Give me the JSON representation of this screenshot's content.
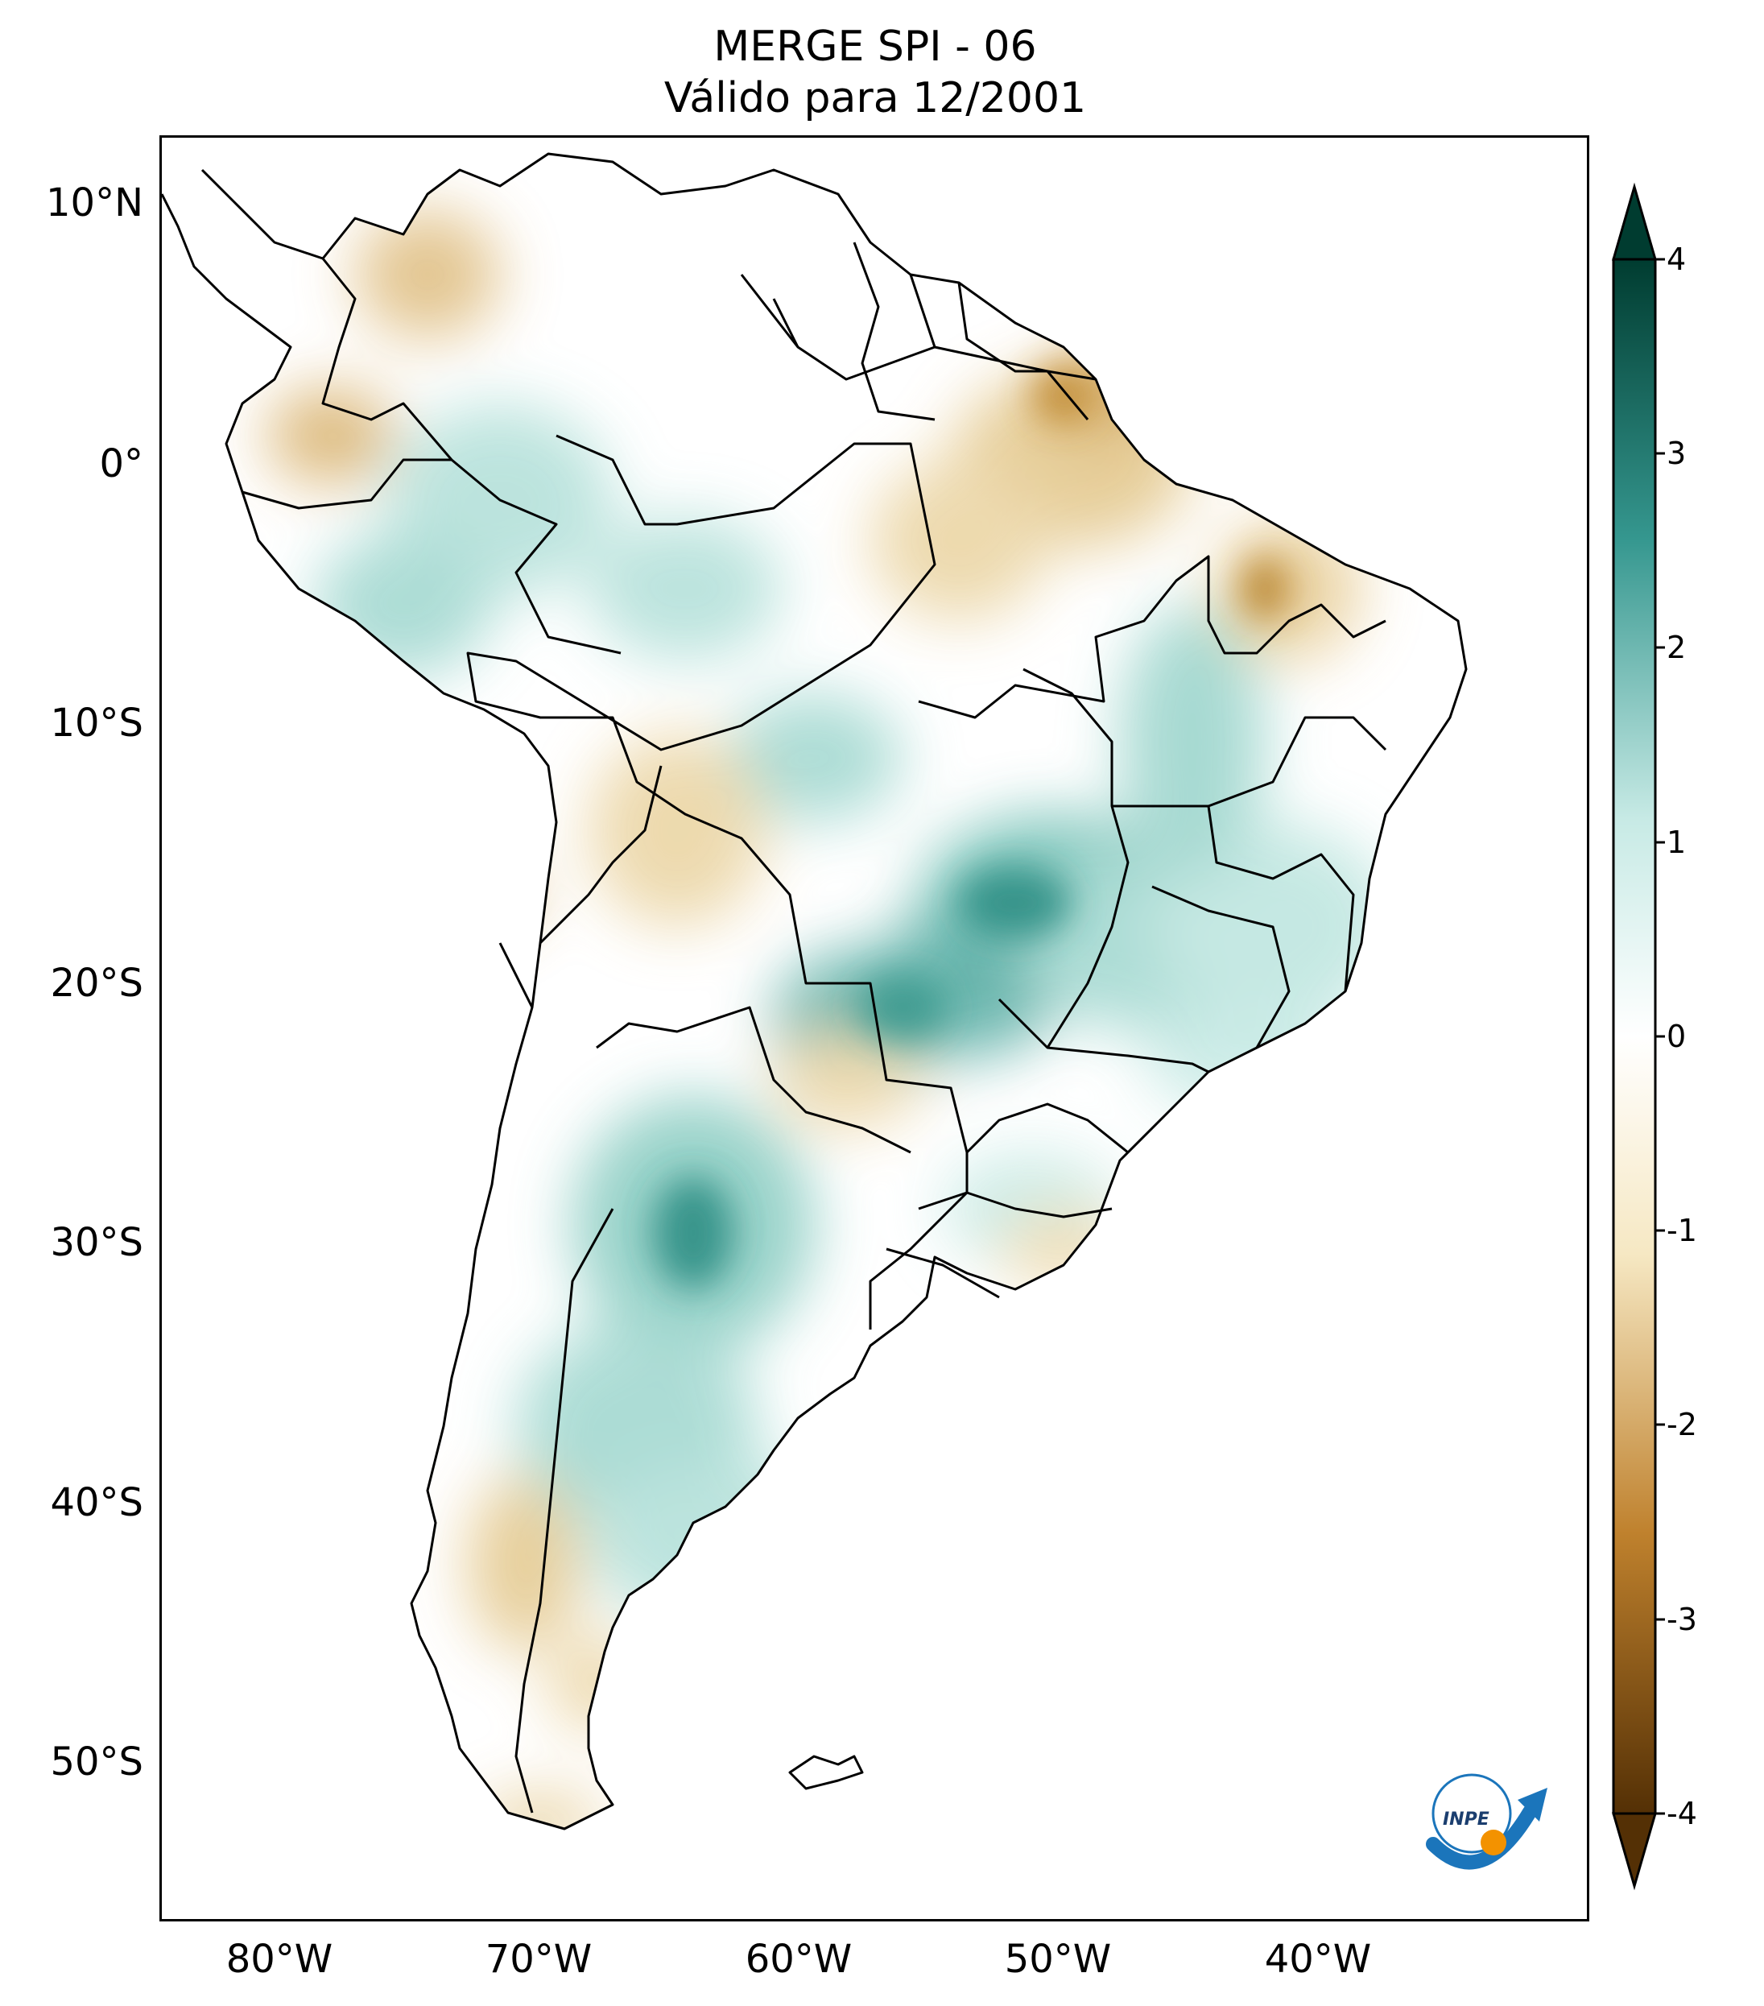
{
  "title": {
    "line1": "MERGE   SPI - 06",
    "line2": "Válido para 12/2001"
  },
  "axes": {
    "lat_labels": [
      "10°N",
      "0°",
      "10°S",
      "20°S",
      "30°S",
      "40°S",
      "50°S"
    ],
    "lon_labels": [
      "80°W",
      "70°W",
      "60°W",
      "50°W",
      "40°W"
    ]
  },
  "colorbar": {
    "ticks": [
      "4",
      "3",
      "2",
      "1",
      "0",
      "-1",
      "-2",
      "-3",
      "-4"
    ],
    "min": -4,
    "max": 4,
    "colors": {
      "dry_extreme": "#543005",
      "dry": "#bf812d",
      "dry_light": "#f6e8c3",
      "neutral": "#ffffff",
      "wet_light": "#c7eae5",
      "wet": "#35978f",
      "wet_extreme": "#003c30"
    }
  },
  "logo": {
    "text": "INPE"
  }
}
